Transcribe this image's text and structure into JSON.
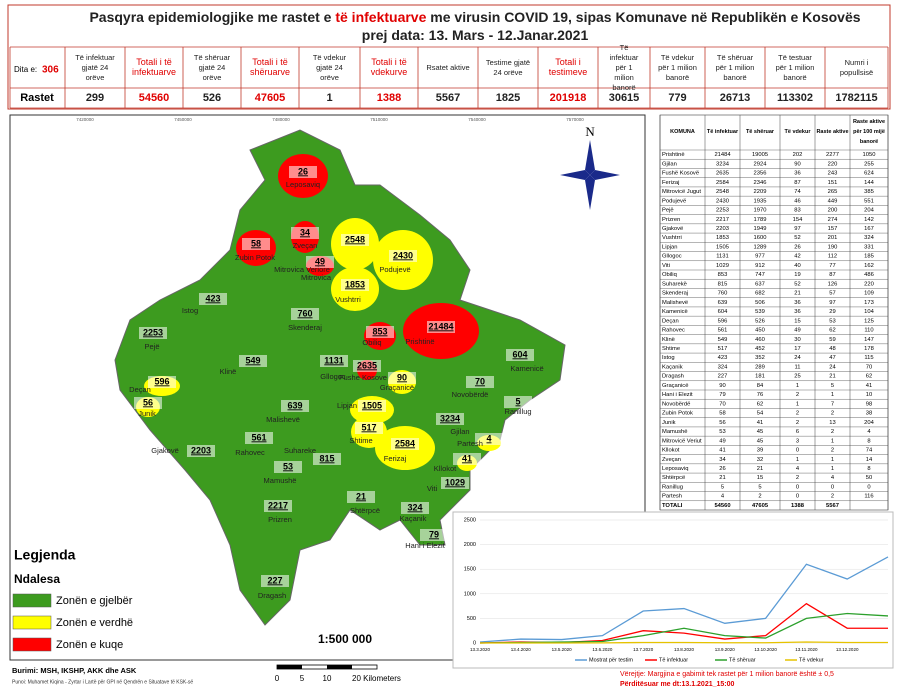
{
  "header": {
    "title": [
      "Pasqyra epidemiologjike me rastet e",
      "të infektuarve",
      "me virusin COVID 19, sipas Komunave në Republikën e Kosovës"
    ],
    "subtitle": "prej data: 13. Mars - 12.Janar.2021"
  },
  "summary": {
    "day_label": "Dita e:",
    "day": "306",
    "row_label": "Rastet",
    "columns": [
      {
        "label": "Të infektuar gjatë 24 orëve",
        "value": 299,
        "highlight": false
      },
      {
        "label": "Totali i të infektuarve",
        "value": 54560,
        "highlight": true
      },
      {
        "label": "Të shëruar gjatë 24 orëve",
        "value": 526,
        "highlight": false
      },
      {
        "label": "Totali i të shëruarve",
        "value": 47605,
        "highlight": true
      },
      {
        "label": "Të vdekur gjatë 24 orëve",
        "value": 1,
        "highlight": false
      },
      {
        "label": "Totali i të vdekurve",
        "value": 1388,
        "highlight": true
      },
      {
        "label": "Rsatet aktive",
        "value": 5567,
        "highlight": false
      },
      {
        "label": "Testime gjatë 24 orëve",
        "value": 1825,
        "highlight": false
      },
      {
        "label": "Totali i testimeve",
        "value": 201918,
        "highlight": true
      },
      {
        "label": "Të infektuar për 1 milion banorë",
        "value": 30615,
        "highlight": false
      },
      {
        "label": "Të vdekur për 1 milion banorë",
        "value": 779,
        "highlight": false
      },
      {
        "label": "Të shëruar për 1 milion banorë",
        "value": 26713,
        "highlight": false
      },
      {
        "label": "Të testuar për 1 milion banorë",
        "value": 113302,
        "highlight": false
      },
      {
        "label": "Numri i popullsisë",
        "value": 1782115,
        "highlight": false
      }
    ]
  },
  "map": {
    "north": "N",
    "scale": "1:500 000",
    "scale_bar": [
      "0",
      "5",
      "10",
      "20 Kilometers"
    ],
    "coords": [
      "7420000",
      "7450000",
      "7480000",
      "7510000",
      "7540000",
      "7570000"
    ],
    "legend": {
      "title": "Legjenda",
      "subtitle": "Ndalesa",
      "items": [
        {
          "zone": "green",
          "color": "#3d9b1f",
          "label": "Zonën e gjelbër"
        },
        {
          "zone": "yellow",
          "color": "#ffff00",
          "label": "Zonën e verdhë"
        },
        {
          "zone": "red",
          "color": "#ff0000",
          "label": "Zonën e kuqe"
        }
      ]
    },
    "municipalities": [
      {
        "name": "Leposaviq",
        "value": 26,
        "zone": "red"
      },
      {
        "name": "Zveçan",
        "value": 34,
        "zone": "red"
      },
      {
        "name": "Zubin Potok",
        "value": 58,
        "zone": "red"
      },
      {
        "name": "Mitrovica Veriore",
        "value": 49,
        "zone": "red"
      },
      {
        "name": "Mitrovica",
        "value": 2548,
        "zone": "yellow"
      },
      {
        "name": "Vushtrri",
        "value": 1853,
        "zone": "yellow"
      },
      {
        "name": "Podujevë",
        "value": 2430,
        "zone": "yellow"
      },
      {
        "name": "Istog",
        "value": 423,
        "zone": "green"
      },
      {
        "name": "Skenderaj",
        "value": 760,
        "zone": "green"
      },
      {
        "name": "Pejë",
        "value": 2253,
        "zone": "green"
      },
      {
        "name": "Obiliq",
        "value": 853,
        "zone": "red"
      },
      {
        "name": "Prishtinë",
        "value": 21484,
        "zone": "red"
      },
      {
        "name": "Klinë",
        "value": 549,
        "zone": "green"
      },
      {
        "name": "Gllogoc",
        "value": 1131,
        "zone": "green"
      },
      {
        "name": "Fushe Kosove",
        "value": 2635,
        "zone": "red"
      },
      {
        "name": "Kamenicë",
        "value": 604,
        "zone": "green"
      },
      {
        "name": "Deçan",
        "value": 596,
        "zone": "yellow"
      },
      {
        "name": "Graçanicë",
        "value": 90,
        "zone": "yellow"
      },
      {
        "name": "Novobërdë",
        "value": 70,
        "zone": "green"
      },
      {
        "name": "Junik",
        "value": 56,
        "zone": "yellow"
      },
      {
        "name": "Ranillug",
        "value": 5,
        "zone": "green"
      },
      {
        "name": "Malishevë",
        "value": 639,
        "zone": "green"
      },
      {
        "name": "Lipjan",
        "value": 1505,
        "zone": "yellow"
      },
      {
        "name": "Shtime",
        "value": 517,
        "zone": "yellow"
      },
      {
        "name": "Gjilan",
        "value": 3234,
        "zone": "green"
      },
      {
        "name": "Partesh",
        "value": 4,
        "zone": "yellow"
      },
      {
        "name": "Rahovec",
        "value": 561,
        "zone": "green"
      },
      {
        "name": "Gjakovë",
        "value": 2203,
        "zone": "green"
      },
      {
        "name": "Ferizaj",
        "value": 2584,
        "zone": "yellow"
      },
      {
        "name": "Kllokot",
        "value": 41,
        "zone": "yellow"
      },
      {
        "name": "Viti",
        "value": 1029,
        "zone": "green"
      },
      {
        "name": "Suhareke",
        "value": 815,
        "zone": "green"
      },
      {
        "name": "Mamushë",
        "value": 53,
        "zone": "green"
      },
      {
        "name": "Shtërpcë",
        "value": 21,
        "zone": "green"
      },
      {
        "name": "Prizren",
        "value": 2217,
        "zone": "green"
      },
      {
        "name": "Kaçanik",
        "value": 324,
        "zone": "green"
      },
      {
        "name": "Hani i Elezit",
        "value": 79,
        "zone": "green"
      },
      {
        "name": "Dragash",
        "value": 227,
        "zone": "green"
      }
    ]
  },
  "table": {
    "columns": [
      "KOMUNA",
      "Të infektuar",
      "Të shëruar",
      "Të vdekur",
      "Raste aktive",
      "Raste aktive për 100 mijë banorë"
    ],
    "rows": [
      [
        "Prishtinë",
        21484,
        19005,
        202,
        2277,
        1050
      ],
      [
        "Gjilan",
        3234,
        2924,
        90,
        220,
        255
      ],
      [
        "Fushë Kosovë",
        2635,
        2356,
        36,
        243,
        624
      ],
      [
        "Ferizaj",
        2584,
        2346,
        87,
        151,
        144
      ],
      [
        "Mitrovicë Jugut",
        2548,
        2209,
        74,
        265,
        385
      ],
      [
        "Podujevë",
        2430,
        1935,
        46,
        449,
        551
      ],
      [
        "Pejë",
        2253,
        1970,
        83,
        200,
        204
      ],
      [
        "Prizren",
        2217,
        1789,
        154,
        274,
        142
      ],
      [
        "Gjakovë",
        2203,
        1949,
        97,
        157,
        167
      ],
      [
        "Vushtrri",
        1853,
        1600,
        52,
        201,
        324
      ],
      [
        "Lipjan",
        1505,
        1289,
        26,
        190,
        331
      ],
      [
        "Gllogoc",
        1131,
        977,
        42,
        112,
        185
      ],
      [
        "Viti",
        1029,
        912,
        40,
        77,
        162
      ],
      [
        "Obiliq",
        853,
        747,
        19,
        87,
        486
      ],
      [
        "Suharekë",
        815,
        637,
        52,
        126,
        220
      ],
      [
        "Skenderaj",
        760,
        682,
        21,
        57,
        109
      ],
      [
        "Malishevë",
        639,
        506,
        36,
        97,
        173
      ],
      [
        "Kamenicë",
        604,
        539,
        36,
        29,
        104
      ],
      [
        "Deçan",
        596,
        526,
        15,
        53,
        125
      ],
      [
        "Rahovec",
        561,
        450,
        49,
        62,
        110
      ],
      [
        "Klinë",
        549,
        460,
        30,
        59,
        147
      ],
      [
        "Shtime",
        517,
        452,
        17,
        48,
        178
      ],
      [
        "Istog",
        423,
        352,
        24,
        47,
        115
      ],
      [
        "Kaçanik",
        324,
        289,
        11,
        24,
        70
      ],
      [
        "Dragash",
        227,
        181,
        25,
        21,
        62
      ],
      [
        "Graçanicë",
        90,
        84,
        1,
        5,
        41
      ],
      [
        "Hani i Elezit",
        79,
        76,
        2,
        1,
        10
      ],
      [
        "Novobërdë",
        70,
        62,
        1,
        7,
        98
      ],
      [
        "Zubin Potok",
        58,
        54,
        2,
        2,
        38
      ],
      [
        "Junik",
        56,
        41,
        2,
        13,
        204
      ],
      [
        "Mamushë",
        53,
        45,
        6,
        2,
        4
      ],
      [
        "Mitrovicë Veriut",
        49,
        45,
        3,
        1,
        8
      ],
      [
        "Kllokot",
        41,
        39,
        0,
        2,
        74
      ],
      [
        "Zveçan",
        34,
        32,
        1,
        1,
        14
      ],
      [
        "Leposaviq",
        26,
        21,
        4,
        1,
        8
      ],
      [
        "Shtërpcë",
        21,
        15,
        2,
        4,
        50
      ],
      [
        "Ranillug",
        5,
        5,
        0,
        0,
        0
      ],
      [
        "Partesh",
        4,
        2,
        0,
        2,
        116
      ]
    ],
    "total": [
      "TOTALI",
      54560,
      47605,
      1388,
      5567
    ]
  },
  "chart_data": {
    "type": "line",
    "categories": [
      "13.3.2020",
      "13.4.2020",
      "13.5.2020",
      "13.6.2020",
      "13.7.2020",
      "13.8.2020",
      "13.9.2020",
      "13.10.2020",
      "13.11.2020",
      "13.12.2020",
      null
    ],
    "series": [
      {
        "name": "Mostrat për testim",
        "color": "#5b9bd5",
        "values": [
          20,
          80,
          70,
          150,
          650,
          700,
          400,
          500,
          1600,
          1300,
          1750
        ]
      },
      {
        "name": "Të infektuar",
        "color": "#ff0000",
        "values": [
          0,
          20,
          10,
          50,
          250,
          200,
          80,
          150,
          800,
          300,
          300
        ]
      },
      {
        "name": "Të shëruar",
        "color": "#2ca02c",
        "values": [
          0,
          10,
          20,
          30,
          150,
          300,
          150,
          100,
          500,
          600,
          550
        ]
      },
      {
        "name": "Të vdekur",
        "color": "#e6c300",
        "values": [
          0,
          0,
          0,
          2,
          10,
          10,
          5,
          5,
          20,
          10,
          10
        ]
      }
    ],
    "ylim": [
      0,
      2500
    ],
    "yticks": [
      0,
      500,
      1000,
      1500,
      2000,
      2500
    ],
    "grid": true
  },
  "notes": {
    "note": "Vërejtje: Margjina e gabimit tek rastet për 1 milion banorë është ± 0,5",
    "updated": "Përditësuar me dt:13.1.2021_15:00"
  },
  "sources": {
    "source": "Burimi: MSH, IKSHP, AKK dhe ASK",
    "author": "Punoi: Muhamet Kiqina - Zyrtar i Lartë për GPI në Qendrën e Situatave të KSK-së"
  }
}
